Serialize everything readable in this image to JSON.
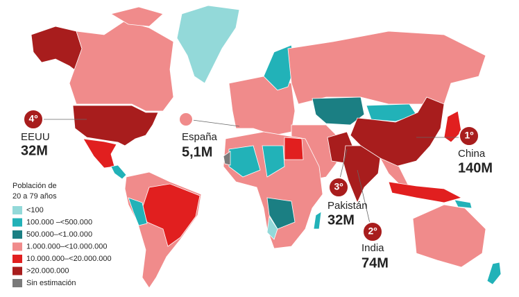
{
  "legend": {
    "title_lines": [
      "Población de",
      "20 a 79 años"
    ],
    "items": [
      {
        "label": "<100",
        "color": "#93d9d9"
      },
      {
        "label": "100.000 –<500.000",
        "color": "#22b2b8"
      },
      {
        "label": "500.000–<1.00.000",
        "color": "#1b7f83"
      },
      {
        "label": "1.000.000–<10.000.000",
        "color": "#f08b8b"
      },
      {
        "label": "10.000.000–<20.000.000",
        "color": "#e11f1f"
      },
      {
        "label": ">20.000.000",
        "color": "#a81d1d"
      },
      {
        "label": "Sin estimación",
        "color": "#7a7a7a"
      }
    ]
  },
  "callouts": [
    {
      "rank": "4º",
      "country": "EEUU",
      "value": "32M"
    },
    {
      "country": "España",
      "value": "5,1M"
    },
    {
      "rank": "1º",
      "country": "China",
      "value": "140M"
    },
    {
      "rank": "3º",
      "country": "Pakistán",
      "value": "32M"
    },
    {
      "rank": "2º",
      "country": "India",
      "value": "74M"
    }
  ]
}
